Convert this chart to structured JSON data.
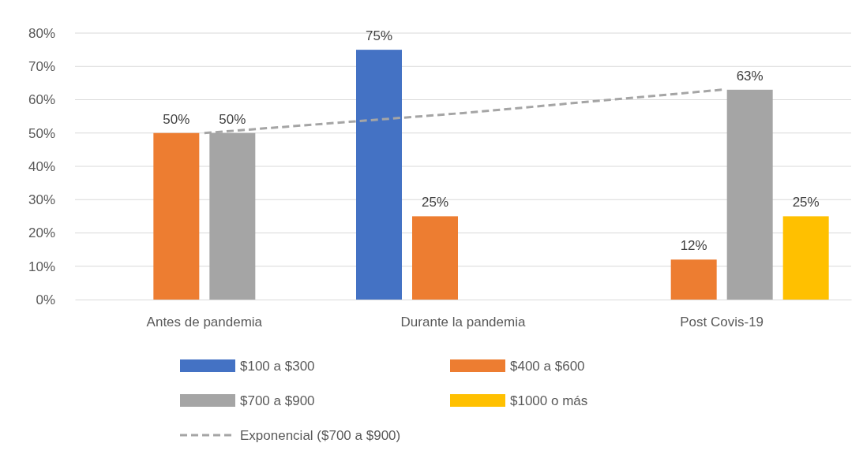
{
  "chart_data": {
    "type": "bar",
    "categories": [
      "Antes de pandemia",
      "Durante la pandemia",
      "Post Covis-19"
    ],
    "series": [
      {
        "name": "$100 a $300",
        "color": "#4472c4",
        "values": [
          null,
          75,
          null
        ]
      },
      {
        "name": "$400 a $600",
        "color": "#ed7d31",
        "values": [
          50,
          25,
          12
        ]
      },
      {
        "name": "$700 a $900",
        "color": "#a5a5a5",
        "values": [
          50,
          null,
          63
        ]
      },
      {
        "name": "$1000 o más",
        "color": "#ffc000",
        "values": [
          null,
          null,
          25
        ]
      },
      {
        "name": "Exponencial ($700 a $900)",
        "type": "line",
        "color": "#a5a5a5",
        "line_style": "dashed",
        "values": [
          50,
          56,
          63
        ]
      }
    ],
    "ylim": [
      0,
      80
    ],
    "yticks": [
      {
        "value": 0,
        "label": "0%"
      },
      {
        "value": 10,
        "label": "10%"
      },
      {
        "value": 20,
        "label": "20%"
      },
      {
        "value": 30,
        "label": "30%"
      },
      {
        "value": 40,
        "label": "40%"
      },
      {
        "value": 50,
        "label": "50%"
      },
      {
        "value": 60,
        "label": "60%"
      },
      {
        "value": 70,
        "label": "70%"
      },
      {
        "value": 80,
        "label": "80%"
      }
    ],
    "value_labels": [
      [
        null,
        "75%",
        null
      ],
      [
        "50%",
        "25%",
        "12%"
      ],
      [
        "50%",
        null,
        "63%"
      ],
      [
        null,
        null,
        "25%"
      ]
    ],
    "grid": "y",
    "legend": "bottom"
  }
}
